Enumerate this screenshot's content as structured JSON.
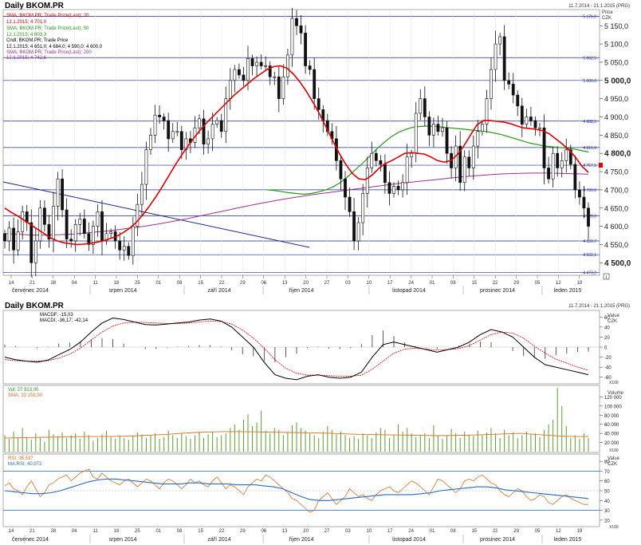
{
  "header": {
    "title": "Daily BKOM.PR",
    "range": "11.7.2014 - 21.1.2015 (PRG)"
  },
  "price_panel": {
    "legend": [
      {
        "text": "SMA; BKOM.PR; Trade Price(Last); 20",
        "color": "#e00000"
      },
      {
        "text": "12.1.2015; 4 701,0",
        "color": "#e00000"
      },
      {
        "text": "SMA; BKOM.PR; Trade Price(Last); 50",
        "color": "#2a9a1a"
      },
      {
        "text": "12.1.2015; 4 803,3",
        "color": "#2a9a1a"
      },
      {
        "text": "Cndl; BKOM.PR; Trade Price",
        "color": "#000000"
      },
      {
        "text": "12.1.2015; 4 651,0; 4 684,0; 4 590,0; 4 600,0",
        "color": "#000000"
      },
      {
        "text": "SMA; BKOM.PR; Trade Price(Last); 200",
        "color": "#a0308a"
      },
      {
        "text": "12.1.2015; 4 742,6",
        "color": "#a0308a"
      }
    ],
    "unit_label": "Price",
    "currency": "CZK",
    "hlines": [
      "5 176,0",
      "5 062,5",
      "5 000,0",
      "4 888,5",
      "4 816,0",
      "4 767,5",
      "4 700,0",
      "4 629,0",
      "4 559,7",
      "4 522,1",
      "4 473,2"
    ],
    "axis_ticks": [
      "5 150,0",
      "5 100,0",
      "5 050,0",
      "5 000,0",
      "4 950,0",
      "4 900,0",
      "4 850,0",
      "4 800,0",
      "4 750,0",
      "4 700,0",
      "4 650,0",
      "4 600,0",
      "4 550,0",
      "4 500,0"
    ],
    "day_ticks": [
      "14",
      "21",
      "28",
      "04",
      "11",
      "18",
      "25",
      "01",
      "08",
      "15",
      "22",
      "29",
      "06",
      "13",
      "20",
      "27",
      "03",
      "10",
      "17",
      "24",
      "01",
      "08",
      "15",
      "22",
      "29",
      "05",
      "12",
      "19"
    ],
    "months": [
      "červenec 2014",
      "srpen 2014",
      "září 2014",
      "říjen 2014",
      "listopad 2014",
      "prosinec 2014",
      "leden 2015"
    ],
    "corner_box": "1"
  },
  "macd_panel": {
    "title": "Daily BKOM.PR",
    "range": "11.7.2014 - 21.1.2015 (PRG)",
    "legend": [
      "MACDF; -15,03",
      "MACDI; -36,17; -42,14"
    ],
    "unit_label": "Value",
    "currency": "CZK",
    "ticks": [
      "60",
      "40",
      "20",
      "0",
      "-20",
      "-40",
      "-60"
    ],
    "corner_box": "X100"
  },
  "volume_panel": {
    "legend": [
      "Vol; 27 913,00",
      "SMA; 33 158,90"
    ],
    "unit_label": "Volume",
    "ticks": [
      "120 000",
      "100 000",
      "80 000",
      "60 000",
      "40 000",
      "20 000"
    ],
    "corner_box": "X100"
  },
  "rsi_panel": {
    "legend": [
      "RSI; 35,537",
      "MA;RSI; 40,972"
    ],
    "unit_label": "Value",
    "currency": "CZK",
    "ticks": [
      "80",
      "70",
      "60",
      "50",
      "40",
      "30",
      "20"
    ],
    "corner_box": "X100"
  },
  "chart_data": [
    {
      "type": "candlestick",
      "title": "Daily BKOM.PR",
      "ylim": [
        4470,
        5190
      ],
      "candles_start": "14.7.2014",
      "close": [
        4560,
        4595,
        4535,
        4585,
        4640,
        4610,
        4500,
        4560,
        4650,
        4605,
        4565,
        4655,
        4730,
        4645,
        4565,
        4560,
        4605,
        4620,
        4580,
        4550,
        4600,
        4640,
        4560,
        4580,
        4585,
        4560,
        4535,
        4545,
        4520,
        4600,
        4660,
        4715,
        4810,
        4850,
        4905,
        4900,
        4890,
        4840,
        4860,
        4860,
        4810,
        4840,
        4830,
        4870,
        4895,
        4825,
        4840,
        4880,
        4890,
        4860,
        4950,
        5000,
        5030,
        5015,
        5000,
        5060,
        5040,
        5050,
        5040,
        5040,
        5010,
        5010,
        4950,
        5010,
        5070,
        5170,
        5150,
        5130,
        5040,
        5030,
        4950,
        4920,
        4890,
        4860,
        4840,
        4780,
        4730,
        4680,
        4640,
        4560,
        4610,
        4690,
        4760,
        4800,
        4780,
        4770,
        4720,
        4690,
        4710,
        4700,
        4720,
        4790,
        4800,
        4910,
        4950,
        4900,
        4850,
        4880,
        4860,
        4870,
        4800,
        4760,
        4820,
        4720,
        4790,
        4760,
        4820,
        4860,
        4880,
        4950,
        5030,
        5100,
        5120,
        5000,
        4990,
        4960,
        4930,
        4880,
        4900,
        4890,
        4870,
        4870,
        4760,
        4730,
        4800,
        4760,
        4780,
        4810,
        4770,
        4700,
        4680,
        4650,
        4600
      ],
      "sma20": [
        4650,
        4638,
        4628,
        4616,
        4604,
        4592,
        4580,
        4568,
        4560,
        4555,
        4552,
        4550,
        4551,
        4553,
        4556,
        4560,
        4566,
        4572,
        4582,
        4594,
        4610,
        4630,
        4654,
        4680,
        4708,
        4738,
        4768,
        4796,
        4822,
        4846,
        4868,
        4888,
        4906,
        4924,
        4942,
        4960,
        4975,
        4990,
        5005,
        5018,
        5030,
        5038,
        5040,
        5034,
        5018,
        4996,
        4970,
        4940,
        4908,
        4872,
        4836,
        4800,
        4770,
        4745,
        4730,
        4728,
        4740,
        4758,
        4772,
        4780,
        4790,
        4800,
        4802,
        4800,
        4798,
        4790,
        4780,
        4776,
        4780,
        4796,
        4820,
        4850,
        4878,
        4890,
        4890,
        4888,
        4886,
        4882,
        4876,
        4870,
        4868,
        4866,
        4862,
        4854,
        4840,
        4826,
        4810,
        4790,
        4765,
        4748
      ],
      "sma50": [
        4700,
        4698,
        4695,
        4692,
        4690,
        4688,
        4690,
        4694,
        4700,
        4708,
        4720,
        4736,
        4754,
        4772,
        4792,
        4812,
        4830,
        4846,
        4858,
        4866,
        4872,
        4874,
        4875,
        4874,
        4872,
        4870,
        4868,
        4866,
        4864,
        4862,
        4860,
        4856,
        4852,
        4846,
        4840,
        4834,
        4828,
        4824,
        4820,
        4818,
        4816,
        4815,
        4812,
        4808,
        4804
      ],
      "sma200": [
        4580,
        4578,
        4576,
        4576,
        4577,
        4579,
        4582,
        4586,
        4590,
        4595,
        4600,
        4606,
        4613,
        4620,
        4628,
        4636,
        4644,
        4652,
        4660,
        4667,
        4674,
        4680,
        4686,
        4691,
        4696,
        4701,
        4706,
        4711,
        4716,
        4720,
        4724,
        4728,
        4732,
        4736,
        4739,
        4742,
        4744,
        4745,
        4746,
        4746,
        4745,
        4744,
        4743
      ]
    },
    {
      "type": "line",
      "title": "MACD",
      "ylim": [
        -70,
        70
      ],
      "series": [
        {
          "name": "MACDF",
          "values": [
            -20,
            -25,
            -28,
            -30,
            -26,
            -15,
            -5,
            10,
            30,
            48,
            58,
            55,
            50,
            45,
            44,
            46,
            48,
            50,
            54,
            56,
            52,
            40,
            20,
            0,
            -30,
            -55,
            -62,
            -65,
            -58,
            -55,
            -60,
            -62,
            -60,
            -50,
            -20,
            5,
            10,
            5,
            0,
            -5,
            -10,
            -5,
            0,
            10,
            25,
            35,
            30,
            20,
            0,
            -20,
            -35,
            -40,
            -45,
            -50,
            -55
          ]
        },
        {
          "name": "MACDI",
          "values": [
            -25,
            -27,
            -28,
            -28,
            -27,
            -22,
            -14,
            -2,
            14,
            30,
            42,
            48,
            50,
            49,
            48,
            47,
            47,
            48,
            50,
            52,
            51,
            46,
            34,
            18,
            -2,
            -25,
            -42,
            -52,
            -56,
            -56,
            -57,
            -58,
            -58,
            -56,
            -44,
            -28,
            -12,
            -4,
            -2,
            -4,
            -6,
            -5,
            -3,
            3,
            14,
            25,
            30,
            28,
            18,
            2,
            -12,
            -24,
            -32,
            -40,
            -46
          ]
        }
      ],
      "histogram": [
        5,
        2,
        0,
        -2,
        1,
        7,
        9,
        12,
        16,
        18,
        16,
        7,
        0,
        -4,
        -4,
        -1,
        1,
        2,
        4,
        4,
        1,
        -6,
        -14,
        -18,
        -28,
        -30,
        -20,
        -13,
        -2,
        1,
        -3,
        -4,
        -2,
        6,
        24,
        33,
        22,
        9,
        2,
        -1,
        -4,
        0,
        3,
        7,
        11,
        10,
        0,
        -8,
        -18,
        -22,
        -23,
        -16,
        -13,
        -10,
        -9
      ]
    },
    {
      "type": "bar",
      "title": "Volume",
      "ylim": [
        0,
        140000
      ],
      "values": [
        36000,
        28000,
        44000,
        30000,
        52000,
        32000,
        26000,
        40000,
        30000,
        22000,
        48000,
        38000,
        34000,
        42000,
        30000,
        36000,
        40000,
        28000,
        44000,
        36000,
        24000,
        30000,
        38000,
        46000,
        32000,
        28000,
        36000,
        30000,
        26000,
        34000,
        42000,
        38000,
        30000,
        36000,
        40000,
        28000,
        32000,
        46000,
        36000,
        30000,
        40000,
        34000,
        28000,
        36000,
        42000,
        30000,
        38000,
        44000,
        32000,
        36000,
        40000,
        52000,
        60000,
        48000,
        70000,
        82000,
        56000,
        64000,
        90000,
        46000,
        40000,
        52000,
        48000,
        36000,
        42000,
        58000,
        64000,
        52000,
        46000,
        40000,
        36000,
        30000,
        44000,
        56000,
        48000,
        38000,
        44000,
        36000,
        30000,
        34000,
        28000,
        40000,
        36000,
        30000,
        42000,
        52000,
        48000,
        30000,
        36000,
        60000,
        44000,
        52000,
        40000,
        32000,
        36000,
        40000,
        30000,
        58000,
        34000,
        28000,
        36000,
        50000,
        40000,
        30000,
        44000,
        38000,
        34000,
        46000,
        36000,
        42000,
        52000,
        40000,
        30000,
        48000,
        36000,
        42000,
        30000,
        36000,
        44000,
        38000,
        40000,
        32000,
        48000,
        60000,
        70000,
        140000,
        100000,
        56000,
        30000,
        36000,
        28000,
        40000,
        30000
      ],
      "sma": [
        30000,
        30500,
        31000,
        31500,
        32000,
        32500,
        33000,
        33000,
        33500,
        34000,
        35000,
        36500,
        38000,
        40000,
        42000,
        43000,
        44000,
        44000,
        43500,
        43000,
        42500,
        42000,
        41500,
        41000,
        40000,
        39000,
        38000,
        37500,
        37000,
        36500,
        36000,
        35500,
        35000,
        35500,
        36000,
        37000,
        38000,
        39000,
        40000,
        38000,
        36000,
        34000,
        33000,
        33000
      ]
    },
    {
      "type": "line",
      "title": "RSI",
      "ylim": [
        15,
        85
      ],
      "series": [
        {
          "name": "RSI",
          "values": [
            55,
            58,
            52,
            50,
            46,
            54,
            60,
            52,
            44,
            48,
            56,
            58,
            62,
            64,
            66,
            60,
            64,
            68,
            70,
            72,
            64,
            62,
            68,
            64,
            60,
            58,
            56,
            60,
            62,
            58,
            54,
            58,
            62,
            60,
            56,
            52,
            58,
            62,
            60,
            56,
            52,
            56,
            62,
            58,
            60,
            56,
            54,
            60,
            64,
            58,
            52,
            56,
            54,
            50,
            46,
            54,
            58,
            62,
            60,
            66,
            64,
            60,
            56,
            52,
            48,
            42,
            40,
            36,
            32,
            28,
            30,
            40,
            44,
            48,
            42,
            36,
            40,
            44,
            52,
            48,
            44,
            46,
            42,
            40,
            46,
            50,
            52,
            54,
            50,
            48,
            52,
            56,
            60,
            58,
            54,
            50,
            46,
            54,
            62,
            60,
            56,
            52,
            48,
            52,
            60,
            62,
            60,
            64,
            66,
            62,
            58,
            56,
            50,
            46,
            44,
            48,
            52,
            50,
            44,
            40,
            42,
            46,
            44,
            38,
            36,
            40,
            44,
            46,
            42,
            40,
            38,
            36,
            36
          ]
        },
        {
          "name": "MA RSI",
          "values": [
            50,
            49,
            48,
            47,
            47,
            48,
            50,
            53,
            56,
            59,
            61,
            62,
            62,
            61,
            60,
            59,
            58,
            57,
            57,
            57,
            58,
            58,
            57,
            57,
            57,
            56,
            56,
            56,
            55,
            54,
            52,
            48,
            44,
            41,
            40,
            40,
            41,
            42,
            43,
            44,
            45,
            46,
            46,
            46,
            46,
            47,
            48,
            50,
            51,
            52,
            53,
            54,
            54,
            53,
            51,
            50,
            49,
            48,
            47,
            46,
            45,
            44,
            43,
            42
          ]
        }
      ]
    }
  ]
}
